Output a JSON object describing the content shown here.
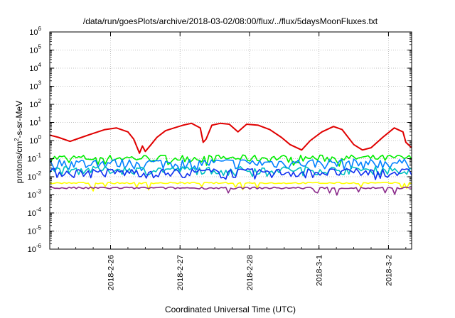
{
  "chart_data": {
    "type": "line",
    "title": "/data/run/goesPlots/archive/2018-03-02/08:00/flux/../flux/5daysMoonFluxes.txt",
    "xlabel": "Coordinated Universal Time (UTC)",
    "ylabel": {
      "before": "protons/cm",
      "sup": "2",
      "after": "-s-sr-MeV"
    },
    "y_scale": "log",
    "ylim": [
      1e-06,
      1000000.0
    ],
    "y_ticks": [
      {
        "value": 1e-06,
        "base": "10",
        "exp": "-6"
      },
      {
        "value": 1e-05,
        "base": "10",
        "exp": "-5"
      },
      {
        "value": 0.0001,
        "base": "10",
        "exp": "-4"
      },
      {
        "value": 0.001,
        "base": "10",
        "exp": "-3"
      },
      {
        "value": 0.01,
        "base": "10",
        "exp": "-2"
      },
      {
        "value": 0.1,
        "base": "10",
        "exp": "-1"
      },
      {
        "value": 1,
        "base": "10",
        "exp": "0"
      },
      {
        "value": 10,
        "base": "10",
        "exp": "1"
      },
      {
        "value": 100,
        "base": "10",
        "exp": "2"
      },
      {
        "value": 1000,
        "base": "10",
        "exp": "3"
      },
      {
        "value": 10000,
        "base": "10",
        "exp": "4"
      },
      {
        "value": 100000,
        "base": "10",
        "exp": "5"
      },
      {
        "value": 1000000,
        "base": "10",
        "exp": "6"
      }
    ],
    "xlim": [
      "2018-02-25T03:00",
      "2018-03-02T08:00"
    ],
    "x_ticks": [
      {
        "value": "2018-02-26",
        "label": "2018-2-26"
      },
      {
        "value": "2018-02-27",
        "label": "2018-2-27"
      },
      {
        "value": "2018-02-28",
        "label": "2018-2-28"
      },
      {
        "value": "2018-03-01",
        "label": "2018-3-1"
      },
      {
        "value": "2018-03-02",
        "label": "2018-3-2"
      }
    ],
    "grid": true,
    "series": [
      {
        "color": "#e00000",
        "x": [
          "2018-02-25T03:00",
          "2018-02-25T06:00",
          "2018-02-25T10:00",
          "2018-02-25T14:00",
          "2018-02-25T18:00",
          "2018-02-25T22:00",
          "2018-02-26T02:00",
          "2018-02-26T06:00",
          "2018-02-26T08:00",
          "2018-02-26T10:00",
          "2018-02-26T11:00",
          "2018-02-26T12:00",
          "2018-02-26T14:00",
          "2018-02-26T16:00",
          "2018-02-26T19:00",
          "2018-02-26T22:00",
          "2018-02-27T01:00",
          "2018-02-27T04:00",
          "2018-02-27T07:00",
          "2018-02-27T08:00",
          "2018-02-27T09:00",
          "2018-02-27T11:00",
          "2018-02-27T14:00",
          "2018-02-27T17:00",
          "2018-02-27T20:00",
          "2018-02-27T23:00",
          "2018-02-28T03:00",
          "2018-02-28T07:00",
          "2018-02-28T11:00",
          "2018-02-28T14:00",
          "2018-02-28T18:00",
          "2018-02-28T21:00",
          "2018-03-01T01:00",
          "2018-03-01T05:00",
          "2018-03-01T08:00",
          "2018-03-01T12:00",
          "2018-03-01T15:00",
          "2018-03-01T18:00",
          "2018-03-01T22:00",
          "2018-03-02T02:00",
          "2018-03-02T05:00",
          "2018-03-02T06:00",
          "2018-03-02T08:00"
        ],
        "values": [
          2.0,
          1.5,
          0.9,
          1.5,
          2.5,
          4.0,
          5.0,
          3.0,
          1.2,
          0.2,
          0.5,
          0.25,
          0.6,
          1.5,
          3.5,
          5.0,
          7.0,
          9.0,
          5.0,
          0.8,
          1.2,
          7.0,
          9.0,
          8.0,
          3.0,
          8.0,
          7.0,
          4.0,
          1.5,
          0.6,
          0.3,
          1.0,
          3.0,
          6.0,
          4.0,
          0.6,
          0.3,
          0.4,
          1.5,
          5.0,
          3.0,
          0.8,
          0.4
        ]
      },
      {
        "color": "#00ee00",
        "level": 0.11,
        "spread": 0.05
      },
      {
        "color": "#0080ff",
        "level": 0.06,
        "spread": 0.035
      },
      {
        "color": "#00c0c0",
        "level": 0.025,
        "spread": 0.012
      },
      {
        "color": "#1030f0",
        "level": 0.018,
        "spread": 0.01
      },
      {
        "color": "#ffff00",
        "level": 0.0045,
        "spread": 0.0004
      },
      {
        "color": "#8b2a8b",
        "level": 0.0024,
        "spread": 0.0003
      }
    ]
  }
}
